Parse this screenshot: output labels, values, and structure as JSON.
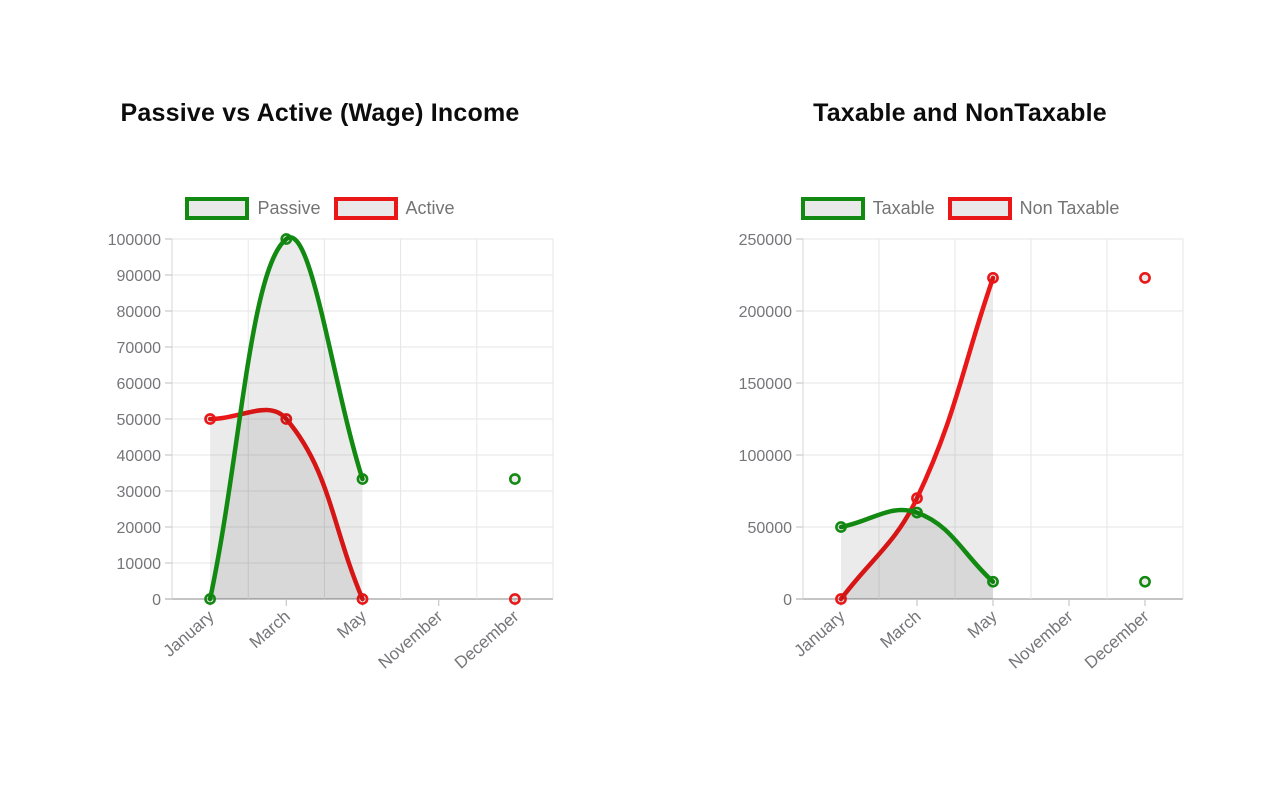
{
  "page": {
    "background": "#ffffff"
  },
  "palette": {
    "green": "#128a12",
    "red": "#e91717",
    "area_fill": "rgba(0,0,0,0.08)",
    "grid_line": "#e6e6e6",
    "axis_border": "#d4d4d4",
    "axis_baseline": "#b1b1b1",
    "tick_mark": "#c9c9c9",
    "tick_label": "#76767a",
    "legend_label": "#747474",
    "legend_swatch_fill": "#e9e9e9",
    "title": "#0c0c0c"
  },
  "chart_data": [
    {
      "type": "line",
      "title": "Passive vs Active (Wage) Income",
      "categories": [
        "January",
        "March",
        "May",
        "November",
        "December"
      ],
      "series": [
        {
          "name": "Passive",
          "color": "#128a12",
          "values": [
            0,
            100000,
            33333,
            null,
            33333
          ]
        },
        {
          "name": "Active",
          "color": "#e91717",
          "values": [
            50000,
            50000,
            0,
            null,
            0
          ]
        }
      ],
      "ylim": [
        0,
        100000
      ],
      "ytick_step": 10000,
      "ytick_labels": [
        "0",
        "10000",
        "20000",
        "30000",
        "40000",
        "50000",
        "60000",
        "70000",
        "80000",
        "90000",
        "100000"
      ],
      "xlabel": "",
      "ylabel": "",
      "grid": true,
      "smooth": true,
      "tension": 0.4,
      "fill_to_zero": true,
      "legend_position": "top",
      "x_labels_rotated_degrees": 41
    },
    {
      "type": "line",
      "title": "Taxable and NonTaxable",
      "categories": [
        "January",
        "March",
        "May",
        "November",
        "December"
      ],
      "series": [
        {
          "name": "Taxable",
          "color": "#128a12",
          "values": [
            50000,
            60000,
            12000,
            null,
            12000
          ]
        },
        {
          "name": "Non Taxable",
          "color": "#e91717",
          "values": [
            0,
            70000,
            223000,
            null,
            223000
          ]
        }
      ],
      "ylim": [
        0,
        250000
      ],
      "ytick_step": 50000,
      "ytick_labels": [
        "0",
        "50000",
        "100000",
        "150000",
        "200000",
        "250000"
      ],
      "xlabel": "",
      "ylabel": "",
      "grid": true,
      "smooth": true,
      "tension": 0.4,
      "fill_to_zero": true,
      "legend_position": "top",
      "x_labels_rotated_degrees": 41
    }
  ]
}
